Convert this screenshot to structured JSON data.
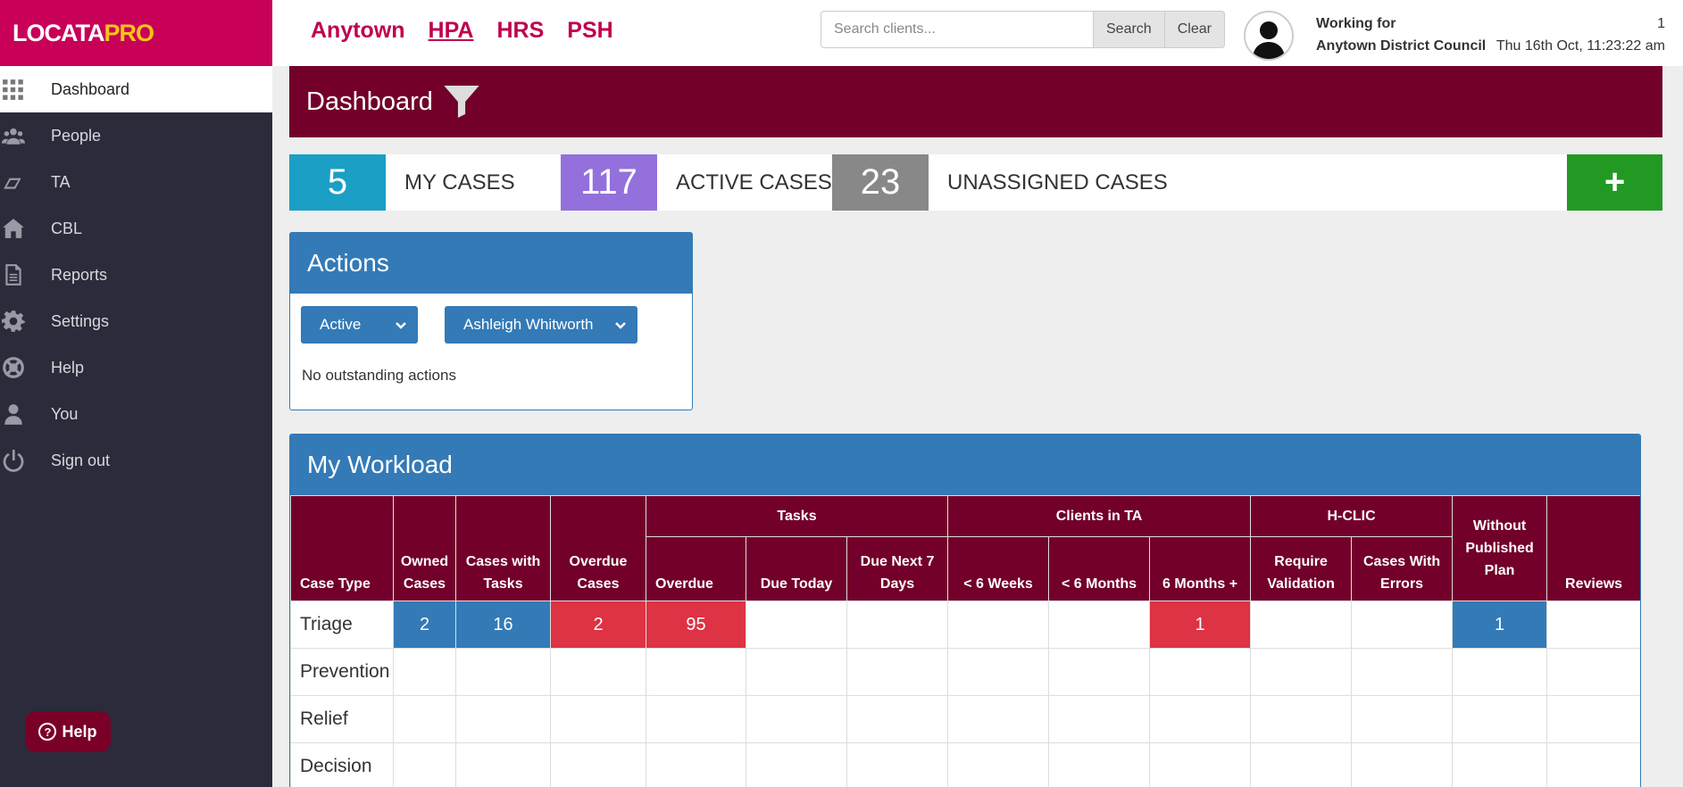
{
  "brand": {
    "logo_main": "LOCATA",
    "logo_pro": "PRO",
    "primary": "#c80058",
    "dark": "#72002a",
    "blue": "#337ab7"
  },
  "sidebar": {
    "items": [
      {
        "label": "Dashboard",
        "icon": "grid-icon"
      },
      {
        "label": "People",
        "icon": "people-icon"
      },
      {
        "label": "TA",
        "icon": "ta-icon"
      },
      {
        "label": "CBL",
        "icon": "house-icon"
      },
      {
        "label": "Reports",
        "icon": "document-icon"
      },
      {
        "label": "Settings",
        "icon": "gear-icon"
      },
      {
        "label": "Help",
        "icon": "lifebuoy-icon"
      },
      {
        "label": "You",
        "icon": "user-icon"
      },
      {
        "label": "Sign out",
        "icon": "power-icon"
      }
    ],
    "help_button": "Help"
  },
  "topbar": {
    "tenants": [
      "Anytown",
      "HPA",
      "HRS",
      "PSH"
    ],
    "search_placeholder": "Search clients...",
    "search_label": "Search",
    "clear_label": "Clear",
    "working_for": "Working for",
    "organisation": "Anytown District Council",
    "notification_count": "1",
    "datetime": "Thu 16th Oct, 11:23:22 am"
  },
  "dashboard": {
    "title": "Dashboard"
  },
  "stats": [
    {
      "value": "5",
      "label": "MY CASES",
      "color": "#1b9fc4"
    },
    {
      "value": "117",
      "label": "ACTIVE CASES",
      "color": "#9370db"
    },
    {
      "value": "23",
      "label": "UNASSIGNED CASES",
      "color": "#888888"
    }
  ],
  "add_label": "+",
  "actions": {
    "title": "Actions",
    "status_select": "Active",
    "user_select": "Ashleigh Whitworth",
    "empty": "No outstanding actions"
  },
  "workload": {
    "title": "My Workload",
    "groups": {
      "tasks": "Tasks",
      "clients_ta": "Clients in TA",
      "hclic": "H-CLIC"
    },
    "headers": {
      "case_type": "Case Type",
      "owned": "Owned Cases",
      "with_tasks": "Cases with Tasks",
      "overdue_cases": "Overdue Cases",
      "overdue": "Overdue",
      "due_today": "Due Today",
      "due_next7": "Due Next 7 Days",
      "lt6w": "< 6 Weeks",
      "lt6m": "< 6 Months",
      "gt6m": "6 Months +",
      "require_validation": "Require Validation",
      "with_errors": "Cases With Errors",
      "without_plan": "Without Published Plan",
      "reviews": "Reviews"
    },
    "rows": [
      {
        "type": "Triage",
        "cells": [
          "2",
          "16",
          "2",
          "95",
          "",
          "",
          "",
          "",
          "1",
          "",
          "",
          "1",
          ""
        ]
      },
      {
        "type": "Prevention",
        "cells": [
          "",
          "",
          "",
          "",
          "",
          "",
          "",
          "",
          "",
          "",
          "",
          "",
          ""
        ]
      },
      {
        "type": "Relief",
        "cells": [
          "",
          "",
          "",
          "",
          "",
          "",
          "",
          "",
          "",
          "",
          "",
          "",
          ""
        ]
      },
      {
        "type": "Decision",
        "cells": [
          "",
          "",
          "",
          "",
          "",
          "",
          "",
          "",
          "",
          "",
          "",
          "",
          ""
        ]
      }
    ]
  }
}
